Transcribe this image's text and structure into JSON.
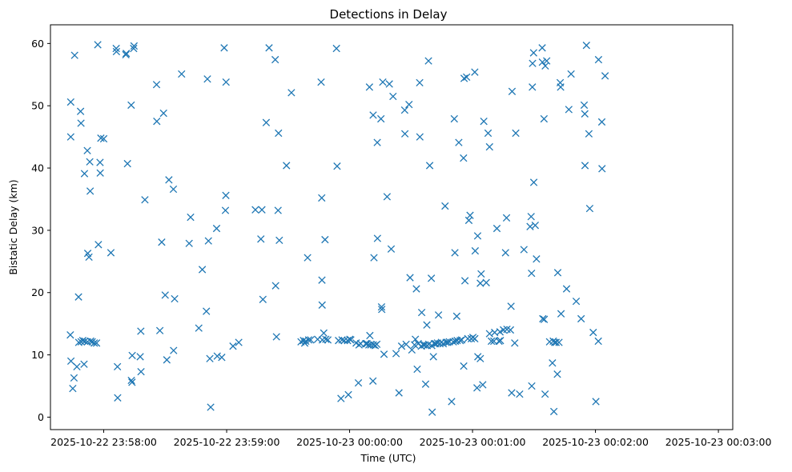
{
  "chart_data": {
    "type": "scatter",
    "title": "Detections in Delay",
    "xlabel": "Time (UTC)",
    "ylabel": "Bistatic Delay (km)",
    "marker": "x",
    "color": "#1f77b4",
    "xlim": [
      -26,
      307
    ],
    "ylim": [
      -2,
      63
    ],
    "x_unit": "seconds after 2025-10-22 23:58:00",
    "xticks": [
      {
        "value": 0,
        "label": "2025-10-22 23:58:00"
      },
      {
        "value": 60,
        "label": "2025-10-22 23:59:00"
      },
      {
        "value": 120,
        "label": "2025-10-23 00:00:00"
      },
      {
        "value": 180,
        "label": "2025-10-23 00:01:00"
      },
      {
        "value": 240,
        "label": "2025-10-23 00:02:00"
      },
      {
        "value": 300,
        "label": "2025-10-23 00:03:00"
      }
    ],
    "yticks": [
      {
        "value": 0,
        "label": "0"
      },
      {
        "value": 10,
        "label": "10"
      },
      {
        "value": 20,
        "label": "20"
      },
      {
        "value": 30,
        "label": "30"
      },
      {
        "value": 40,
        "label": "40"
      },
      {
        "value": 50,
        "label": "50"
      },
      {
        "value": 60,
        "label": "60"
      }
    ],
    "points": [
      [
        -16.3,
        13.2
      ],
      [
        -16.1,
        50.6
      ],
      [
        -16.1,
        45.0
      ],
      [
        -16.0,
        9.0
      ],
      [
        -15.1,
        4.6
      ],
      [
        -14.5,
        6.3
      ],
      [
        -14.2,
        58.1
      ],
      [
        -13.1,
        8.1
      ],
      [
        -12.3,
        19.3
      ],
      [
        -12.2,
        12.0
      ],
      [
        -11.3,
        49.1
      ],
      [
        -11.1,
        47.2
      ],
      [
        -11.0,
        12.1
      ],
      [
        -10.2,
        12.3
      ],
      [
        -9.6,
        8.5
      ],
      [
        -9.4,
        39.1
      ],
      [
        -9.2,
        12.2
      ],
      [
        -8.0,
        42.8
      ],
      [
        -7.9,
        12.1
      ],
      [
        -7.8,
        26.3
      ],
      [
        -7.2,
        25.7
      ],
      [
        -6.8,
        41.0
      ],
      [
        -6.6,
        36.3
      ],
      [
        -6.4,
        12.2
      ],
      [
        -5.6,
        12.1
      ],
      [
        -4.6,
        11.9
      ],
      [
        -3.5,
        11.9
      ],
      [
        -2.9,
        59.8
      ],
      [
        -2.6,
        27.7
      ],
      [
        -1.8,
        40.9
      ],
      [
        -1.7,
        39.2
      ],
      [
        -1.4,
        44.8
      ],
      [
        0.0,
        44.7
      ],
      [
        3.5,
        26.4
      ],
      [
        6.1,
        59.2
      ],
      [
        6.2,
        58.7
      ],
      [
        6.7,
        8.1
      ],
      [
        6.8,
        3.1
      ],
      [
        10.8,
        58.2
      ],
      [
        11.0,
        58.4
      ],
      [
        11.6,
        40.7
      ],
      [
        13.4,
        50.1
      ],
      [
        13.5,
        5.9
      ],
      [
        13.8,
        5.6
      ],
      [
        13.9,
        9.9
      ],
      [
        14.6,
        59.2
      ],
      [
        14.8,
        59.6
      ],
      [
        17.8,
        9.7
      ],
      [
        18.1,
        13.8
      ],
      [
        18.2,
        7.3
      ],
      [
        20.1,
        34.9
      ],
      [
        25.8,
        53.4
      ],
      [
        25.9,
        47.5
      ],
      [
        27.4,
        13.9
      ],
      [
        28.3,
        28.1
      ],
      [
        29.2,
        48.8
      ],
      [
        30.0,
        19.6
      ],
      [
        30.8,
        9.2
      ],
      [
        31.8,
        38.1
      ],
      [
        34.0,
        36.6
      ],
      [
        34.1,
        10.7
      ],
      [
        34.6,
        19.0
      ],
      [
        38.0,
        55.1
      ],
      [
        41.7,
        27.9
      ],
      [
        42.4,
        32.1
      ],
      [
        46.4,
        14.3
      ],
      [
        48.1,
        23.7
      ],
      [
        50.1,
        17.0
      ],
      [
        50.6,
        54.3
      ],
      [
        51.1,
        28.3
      ],
      [
        51.8,
        9.4
      ],
      [
        52.2,
        1.6
      ],
      [
        55.1,
        30.3
      ],
      [
        55.4,
        9.8
      ],
      [
        57.6,
        9.6
      ],
      [
        58.8,
        59.3
      ],
      [
        59.4,
        33.2
      ],
      [
        59.6,
        35.6
      ],
      [
        59.7,
        53.8
      ],
      [
        63.1,
        11.4
      ],
      [
        65.9,
        12.0
      ],
      [
        74.0,
        33.3
      ],
      [
        76.7,
        28.6
      ],
      [
        77.2,
        33.3
      ],
      [
        77.7,
        18.9
      ],
      [
        79.3,
        47.3
      ],
      [
        80.7,
        59.3
      ],
      [
        83.7,
        57.4
      ],
      [
        83.9,
        21.1
      ],
      [
        84.3,
        12.9
      ],
      [
        85.1,
        33.2
      ],
      [
        85.3,
        45.6
      ],
      [
        85.7,
        28.4
      ],
      [
        89.2,
        40.4
      ],
      [
        91.6,
        52.1
      ],
      [
        96.3,
        12.1
      ],
      [
        97.5,
        12.3
      ],
      [
        98.1,
        11.9
      ],
      [
        98.6,
        12.2
      ],
      [
        99.5,
        25.6
      ],
      [
        100.0,
        12.4
      ],
      [
        101.0,
        12.4
      ],
      [
        104.4,
        12.5
      ],
      [
        106.1,
        53.8
      ],
      [
        106.4,
        35.2
      ],
      [
        106.5,
        22.0
      ],
      [
        106.6,
        18.0
      ],
      [
        106.7,
        12.4
      ],
      [
        107.4,
        13.5
      ],
      [
        108.0,
        28.5
      ],
      [
        108.4,
        12.5
      ],
      [
        109.4,
        12.4
      ],
      [
        113.6,
        59.2
      ],
      [
        113.9,
        40.3
      ],
      [
        114.6,
        12.3
      ],
      [
        115.8,
        3.0
      ],
      [
        116.3,
        12.4
      ],
      [
        117.4,
        12.3
      ],
      [
        119.0,
        12.3
      ],
      [
        119.4,
        3.6
      ],
      [
        120.1,
        12.5
      ],
      [
        120.6,
        12.4
      ],
      [
        123.2,
        11.9
      ],
      [
        124.3,
        5.5
      ],
      [
        124.6,
        11.6
      ],
      [
        125.4,
        11.8
      ],
      [
        127.9,
        11.8
      ],
      [
        128.5,
        11.8
      ],
      [
        129.4,
        11.6
      ],
      [
        129.7,
        53.0
      ],
      [
        129.9,
        13.1
      ],
      [
        130.4,
        11.6
      ],
      [
        131.4,
        5.8
      ],
      [
        131.5,
        48.5
      ],
      [
        131.6,
        11.6
      ],
      [
        131.9,
        25.6
      ],
      [
        132.5,
        11.5
      ],
      [
        133.3,
        11.7
      ],
      [
        133.5,
        44.1
      ],
      [
        133.6,
        28.7
      ],
      [
        135.3,
        47.9
      ],
      [
        135.6,
        17.7
      ],
      [
        135.7,
        17.3
      ],
      [
        136.2,
        53.8
      ],
      [
        136.8,
        10.1
      ],
      [
        138.3,
        35.4
      ],
      [
        139.4,
        53.5
      ],
      [
        140.3,
        27.0
      ],
      [
        141.2,
        51.5
      ],
      [
        142.7,
        10.2
      ],
      [
        144.1,
        3.9
      ],
      [
        145.4,
        11.4
      ],
      [
        146.9,
        49.3
      ],
      [
        147.0,
        45.5
      ],
      [
        147.6,
        11.7
      ],
      [
        149.0,
        50.2
      ],
      [
        149.5,
        22.4
      ],
      [
        150.4,
        10.8
      ],
      [
        151.7,
        11.6
      ],
      [
        152.1,
        12.5
      ],
      [
        152.6,
        20.6
      ],
      [
        153.0,
        7.7
      ],
      [
        153.5,
        11.8
      ],
      [
        154.2,
        53.7
      ],
      [
        154.3,
        45.0
      ],
      [
        155.0,
        11.4
      ],
      [
        155.2,
        16.8
      ],
      [
        156.0,
        11.6
      ],
      [
        156.7,
        11.6
      ],
      [
        157.1,
        5.3
      ],
      [
        157.7,
        14.8
      ],
      [
        157.9,
        11.5
      ],
      [
        158.5,
        57.2
      ],
      [
        158.6,
        11.7
      ],
      [
        159.1,
        40.4
      ],
      [
        159.9,
        22.3
      ],
      [
        160.1,
        11.5
      ],
      [
        160.3,
        0.8
      ],
      [
        160.9,
        9.7
      ],
      [
        161.4,
        11.8
      ],
      [
        162.0,
        11.8
      ],
      [
        162.9,
        11.9
      ],
      [
        163.4,
        16.4
      ],
      [
        164.1,
        11.8
      ],
      [
        164.8,
        12.0
      ],
      [
        165.7,
        11.8
      ],
      [
        166.6,
        33.9
      ],
      [
        167.1,
        12.0
      ],
      [
        167.9,
        12.0
      ],
      [
        168.7,
        12.1
      ],
      [
        169.8,
        2.5
      ],
      [
        170.6,
        12.1
      ],
      [
        171.1,
        47.9
      ],
      [
        171.4,
        26.4
      ],
      [
        171.6,
        12.2
      ],
      [
        172.3,
        16.2
      ],
      [
        172.5,
        12.3
      ],
      [
        173.3,
        44.1
      ],
      [
        174.0,
        12.3
      ],
      [
        174.7,
        12.4
      ],
      [
        175.6,
        41.6
      ],
      [
        175.7,
        8.2
      ],
      [
        175.9,
        54.4
      ],
      [
        176.3,
        21.9
      ],
      [
        177.1,
        54.6
      ],
      [
        177.7,
        12.6
      ],
      [
        178.2,
        31.6
      ],
      [
        178.8,
        32.4
      ],
      [
        179.4,
        12.6
      ],
      [
        180.2,
        12.8
      ],
      [
        181.1,
        55.4
      ],
      [
        181.1,
        12.6
      ],
      [
        181.3,
        26.7
      ],
      [
        182.2,
        4.7
      ],
      [
        182.5,
        29.1
      ],
      [
        182.6,
        9.7
      ],
      [
        183.8,
        9.4
      ],
      [
        183.8,
        21.5
      ],
      [
        184.2,
        23.0
      ],
      [
        185.0,
        5.2
      ],
      [
        185.5,
        47.5
      ],
      [
        186.7,
        21.6
      ],
      [
        187.6,
        45.6
      ],
      [
        188.3,
        13.4
      ],
      [
        188.3,
        43.4
      ],
      [
        189.2,
        12.2
      ],
      [
        190.4,
        12.2
      ],
      [
        190.8,
        13.6
      ],
      [
        191.9,
        30.3
      ],
      [
        192.9,
        12.2
      ],
      [
        193.4,
        13.7
      ],
      [
        193.6,
        12.3
      ],
      [
        195.1,
        14.0
      ],
      [
        196.1,
        26.4
      ],
      [
        196.6,
        32.0
      ],
      [
        196.8,
        14.1
      ],
      [
        198.5,
        14.0
      ],
      [
        198.8,
        17.8
      ],
      [
        199.1,
        3.9
      ],
      [
        199.3,
        52.3
      ],
      [
        200.6,
        11.9
      ],
      [
        201.1,
        45.6
      ],
      [
        203.0,
        3.7
      ],
      [
        205.1,
        26.9
      ],
      [
        208.1,
        30.6
      ],
      [
        208.6,
        32.2
      ],
      [
        208.8,
        23.1
      ],
      [
        208.9,
        5.0
      ],
      [
        209.2,
        53.0
      ],
      [
        209.3,
        56.8
      ],
      [
        209.8,
        58.5
      ],
      [
        209.9,
        37.7
      ],
      [
        210.6,
        30.8
      ],
      [
        211.2,
        25.4
      ],
      [
        214.0,
        59.3
      ],
      [
        214.1,
        57.0
      ],
      [
        214.3,
        15.8
      ],
      [
        214.9,
        47.9
      ],
      [
        215.0,
        15.7
      ],
      [
        215.4,
        3.7
      ],
      [
        215.5,
        56.4
      ],
      [
        216.2,
        57.2
      ],
      [
        217.6,
        12.1
      ],
      [
        219.0,
        8.7
      ],
      [
        219.4,
        12.2
      ],
      [
        219.7,
        0.9
      ],
      [
        220.1,
        12.0
      ],
      [
        220.8,
        12.0
      ],
      [
        221.4,
        6.9
      ],
      [
        221.6,
        23.2
      ],
      [
        222.2,
        12.0
      ],
      [
        222.8,
        53.7
      ],
      [
        223.0,
        53.0
      ],
      [
        223.2,
        16.6
      ],
      [
        225.9,
        20.6
      ],
      [
        227.0,
        49.4
      ],
      [
        228.1,
        55.1
      ],
      [
        230.6,
        18.6
      ],
      [
        233.0,
        15.8
      ],
      [
        234.5,
        50.1
      ],
      [
        234.8,
        48.7
      ],
      [
        234.9,
        40.4
      ],
      [
        235.6,
        59.7
      ],
      [
        236.8,
        45.5
      ],
      [
        237.2,
        33.5
      ],
      [
        238.9,
        13.6
      ],
      [
        240.2,
        2.5
      ],
      [
        241.4,
        12.2
      ],
      [
        241.5,
        57.4
      ],
      [
        243.1,
        47.4
      ],
      [
        243.2,
        39.9
      ],
      [
        244.7,
        54.8
      ]
    ]
  }
}
